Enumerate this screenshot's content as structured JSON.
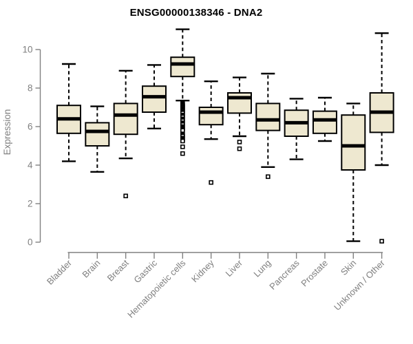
{
  "figure": {
    "title": "ENSG00000138346 - DNA2"
  },
  "colors": {
    "background": "#FFFFFF",
    "box_fill": "#EEE8D0",
    "box_stroke": "#000000",
    "median": "#000000",
    "whisker": "#000000",
    "outlier_stroke": "#000000",
    "outlier_fill": "#FFFFFF",
    "axis": "#808080",
    "tick_label": "#7F7F7F",
    "axis_label": "#7F7F7F",
    "title": "#000000"
  },
  "chart_data": {
    "type": "boxplot",
    "title": "ENSG00000138346 - DNA2",
    "xlabel": "",
    "ylabel": "Expression",
    "ylim": [
      0,
      10
    ],
    "yticks": [
      0,
      2,
      4,
      6,
      8,
      10
    ],
    "grid": false,
    "legend": null,
    "categories": [
      "Bladder",
      "Brain",
      "Breast",
      "Gastric",
      "Hematopoietic cells",
      "Kidney",
      "Liver",
      "Lung",
      "Pancreas",
      "Prostate",
      "Skin",
      "Unknown / Other"
    ],
    "series": [
      {
        "name": "Bladder",
        "whisker_low": 4.2,
        "q1": 5.65,
        "median": 6.4,
        "q3": 7.1,
        "whisker_high": 9.25,
        "outliers": []
      },
      {
        "name": "Brain",
        "whisker_low": 3.65,
        "q1": 5.0,
        "median": 5.75,
        "q3": 6.2,
        "whisker_high": 7.05,
        "outliers": []
      },
      {
        "name": "Breast",
        "whisker_low": 4.35,
        "q1": 5.6,
        "median": 6.6,
        "q3": 7.2,
        "whisker_high": 8.9,
        "outliers": [
          2.4
        ]
      },
      {
        "name": "Gastric",
        "whisker_low": 5.9,
        "q1": 6.75,
        "median": 7.55,
        "q3": 8.1,
        "whisker_high": 9.2,
        "outliers": []
      },
      {
        "name": "Hematopoietic cells",
        "whisker_low": 7.35,
        "q1": 8.6,
        "median": 9.25,
        "q3": 9.6,
        "whisker_high": 11.05,
        "outliers": [
          7.2,
          7.15,
          7.1,
          7.05,
          7.0,
          6.95,
          6.9,
          6.85,
          6.8,
          6.75,
          6.7,
          6.6,
          6.55,
          6.5,
          6.4,
          6.35,
          6.3,
          6.2,
          6.15,
          6.1,
          6.0,
          5.95,
          5.9,
          5.85,
          5.8,
          5.6,
          5.55,
          5.5,
          5.4,
          5.35,
          5.3,
          5.25,
          4.95,
          4.6
        ]
      },
      {
        "name": "Kidney",
        "whisker_low": 5.35,
        "q1": 6.1,
        "median": 6.75,
        "q3": 7.0,
        "whisker_high": 8.35,
        "outliers": [
          3.1
        ]
      },
      {
        "name": "Liver",
        "whisker_low": 5.5,
        "q1": 6.7,
        "median": 7.5,
        "q3": 7.75,
        "whisker_high": 8.55,
        "outliers": [
          5.2,
          4.85
        ]
      },
      {
        "name": "Lung",
        "whisker_low": 3.9,
        "q1": 5.8,
        "median": 6.35,
        "q3": 7.2,
        "whisker_high": 8.75,
        "outliers": [
          3.4
        ]
      },
      {
        "name": "Pancreas",
        "whisker_low": 4.3,
        "q1": 5.5,
        "median": 6.2,
        "q3": 6.85,
        "whisker_high": 7.45,
        "outliers": []
      },
      {
        "name": "Prostate",
        "whisker_low": 5.25,
        "q1": 5.65,
        "median": 6.35,
        "q3": 6.8,
        "whisker_high": 7.5,
        "outliers": []
      },
      {
        "name": "Skin",
        "whisker_low": 0.05,
        "q1": 3.75,
        "median": 5.0,
        "q3": 6.6,
        "whisker_high": 7.2,
        "outliers": []
      },
      {
        "name": "Unknown / Other",
        "whisker_low": 4.0,
        "q1": 5.7,
        "median": 6.75,
        "q3": 7.75,
        "whisker_high": 10.85,
        "outliers": [
          0.05
        ]
      }
    ]
  }
}
